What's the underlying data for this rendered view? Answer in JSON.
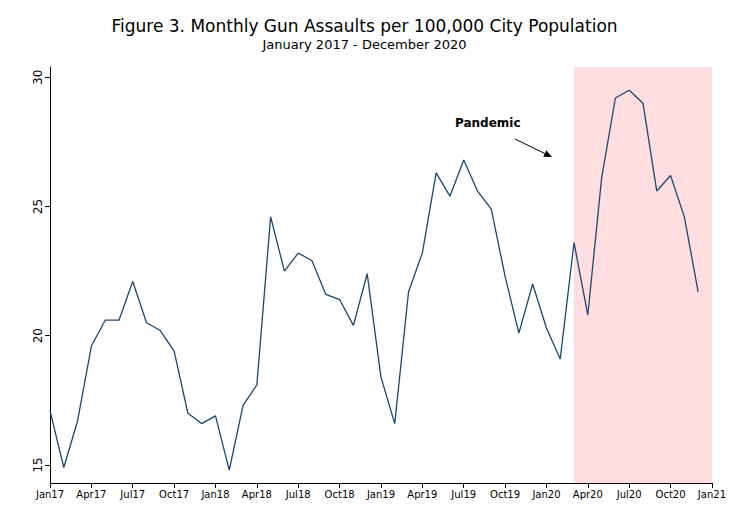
{
  "chart_data": {
    "type": "line",
    "title": "Figure 3. Monthly Gun Assaults per 100,000 City Population",
    "subtitle": "January 2017 - December 2020",
    "categories": [
      "Jan17",
      null,
      null,
      "Apr17",
      null,
      null,
      "Jul17",
      null,
      null,
      "Oct17",
      null,
      null,
      "Jan18",
      null,
      null,
      "Apr18",
      null,
      null,
      "Jul18",
      null,
      null,
      "Oct18",
      null,
      null,
      "Jan19",
      null,
      null,
      "Apr19",
      null,
      null,
      "Jul19",
      null,
      null,
      "Oct19",
      null,
      null,
      "Jan20",
      null,
      null,
      "Apr20",
      null,
      null,
      "Jul20",
      null,
      null,
      "Oct20",
      null,
      null,
      "Jan21"
    ],
    "values": [
      17.1,
      14.9,
      16.7,
      19.6,
      20.6,
      20.6,
      22.1,
      20.5,
      20.2,
      19.4,
      17.0,
      16.6,
      16.9,
      14.8,
      17.3,
      18.1,
      24.6,
      22.5,
      23.2,
      22.9,
      21.6,
      21.4,
      20.4,
      22.4,
      18.4,
      16.6,
      21.7,
      23.2,
      26.3,
      25.4,
      26.8,
      25.6,
      24.9,
      22.3,
      20.1,
      22.0,
      20.3,
      19.1,
      23.6,
      20.8,
      26.1,
      29.2,
      29.5,
      29.0,
      25.6,
      26.2,
      24.6,
      21.7,
      null
    ],
    "color": "#1a476f",
    "ylim": [
      14.3,
      30.4
    ],
    "yticks": [
      15,
      20,
      25,
      30
    ],
    "grid": false,
    "annotation": {
      "text": "Pandemic",
      "span": [
        38,
        48
      ],
      "color": "#ffdde1"
    }
  }
}
